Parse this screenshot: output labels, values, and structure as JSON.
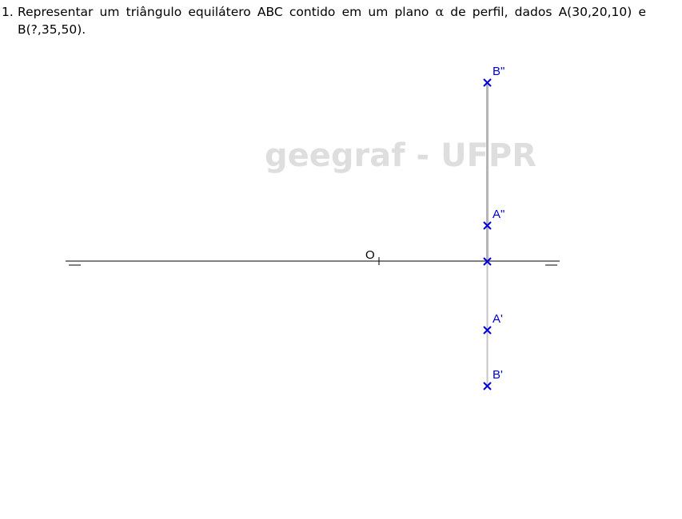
{
  "problem": {
    "number": "1.",
    "line1_before_alpha": "Representar um triângulo equilátero ABC contido em um plano",
    "alpha": "α",
    "line1_after_alpha": "de perfil, dados A(30,20,10) e",
    "line2": "B(?,35,50)."
  },
  "watermark": "geegraf - UFPR",
  "diagram": {
    "origin_label": "O",
    "points": [
      {
        "id": "B2",
        "label": "B\""
      },
      {
        "id": "A2",
        "label": "A\""
      },
      {
        "id": "A1",
        "label": "A'"
      },
      {
        "id": "B1",
        "label": "B'"
      }
    ],
    "colors": {
      "points": "#0000dd",
      "profile_line": "#b5b5b5",
      "ground_line": "#000000",
      "watermark": "#dedede"
    }
  }
}
